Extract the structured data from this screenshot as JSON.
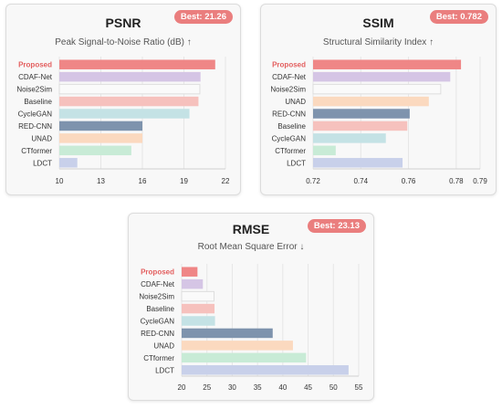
{
  "chart_data": [
    {
      "type": "bar",
      "orientation": "horizontal",
      "title": "PSNR",
      "subtitle": "Peak Signal-to-Noise Ratio (dB) ↑",
      "badge": "Best: 21.26",
      "categories": [
        "Proposed",
        "CDAF-Net",
        "Noise2Sim",
        "Baseline",
        "CycleGAN",
        "RED-CNN",
        "UNAD",
        "CTformer",
        "LDCT"
      ],
      "values": [
        21.26,
        20.2,
        20.15,
        20.05,
        19.4,
        16.0,
        16.0,
        15.2,
        11.3
      ],
      "xlim": [
        10,
        22
      ],
      "xticks": [
        10,
        13,
        16,
        19,
        22
      ],
      "grid": true
    },
    {
      "type": "bar",
      "orientation": "horizontal",
      "title": "SSIM",
      "subtitle": "Structural Similarity Index ↑",
      "badge": "Best: 0.782",
      "categories": [
        "Proposed",
        "CDAF-Net",
        "Noise2Sim",
        "UNAD",
        "RED-CNN",
        "Baseline",
        "CycleGAN",
        "CTformer",
        "LDCT"
      ],
      "values": [
        0.782,
        0.7775,
        0.7735,
        0.7685,
        0.7605,
        0.7595,
        0.7505,
        0.7295,
        0.7575
      ],
      "xlim": [
        0.72,
        0.79
      ],
      "xticks": [
        0.72,
        0.74,
        0.76,
        0.78,
        0.79
      ],
      "grid": true
    },
    {
      "type": "bar",
      "orientation": "horizontal",
      "title": "RMSE",
      "subtitle": "Root Mean Square Error ↓",
      "badge": "Best: 23.13",
      "categories": [
        "Proposed",
        "CDAF-Net",
        "Noise2Sim",
        "Baseline",
        "CycleGAN",
        "RED-CNN",
        "UNAD",
        "CTformer",
        "LDCT"
      ],
      "values": [
        23.13,
        24.2,
        26.4,
        26.5,
        26.6,
        38.0,
        42.0,
        44.6,
        53.0
      ],
      "xlim": [
        20,
        55
      ],
      "xticks": [
        20,
        25,
        30,
        35,
        40,
        45,
        50,
        55
      ],
      "grid": true
    }
  ],
  "colors": {
    "Proposed": "#ef8686",
    "CDAF-Net": "#d5c5e5",
    "Noise2Sim": "#fafafa",
    "Baseline": "#f6c1bd",
    "CycleGAN": "#c4e2e5",
    "RED-CNN": "#7e93ad",
    "UNAD": "#fbd9bf",
    "CTformer": "#c8ebd6",
    "LDCT": "#c8d0ea",
    "highlight_label": "#e35e5e",
    "badge": "#ea7e7e"
  }
}
